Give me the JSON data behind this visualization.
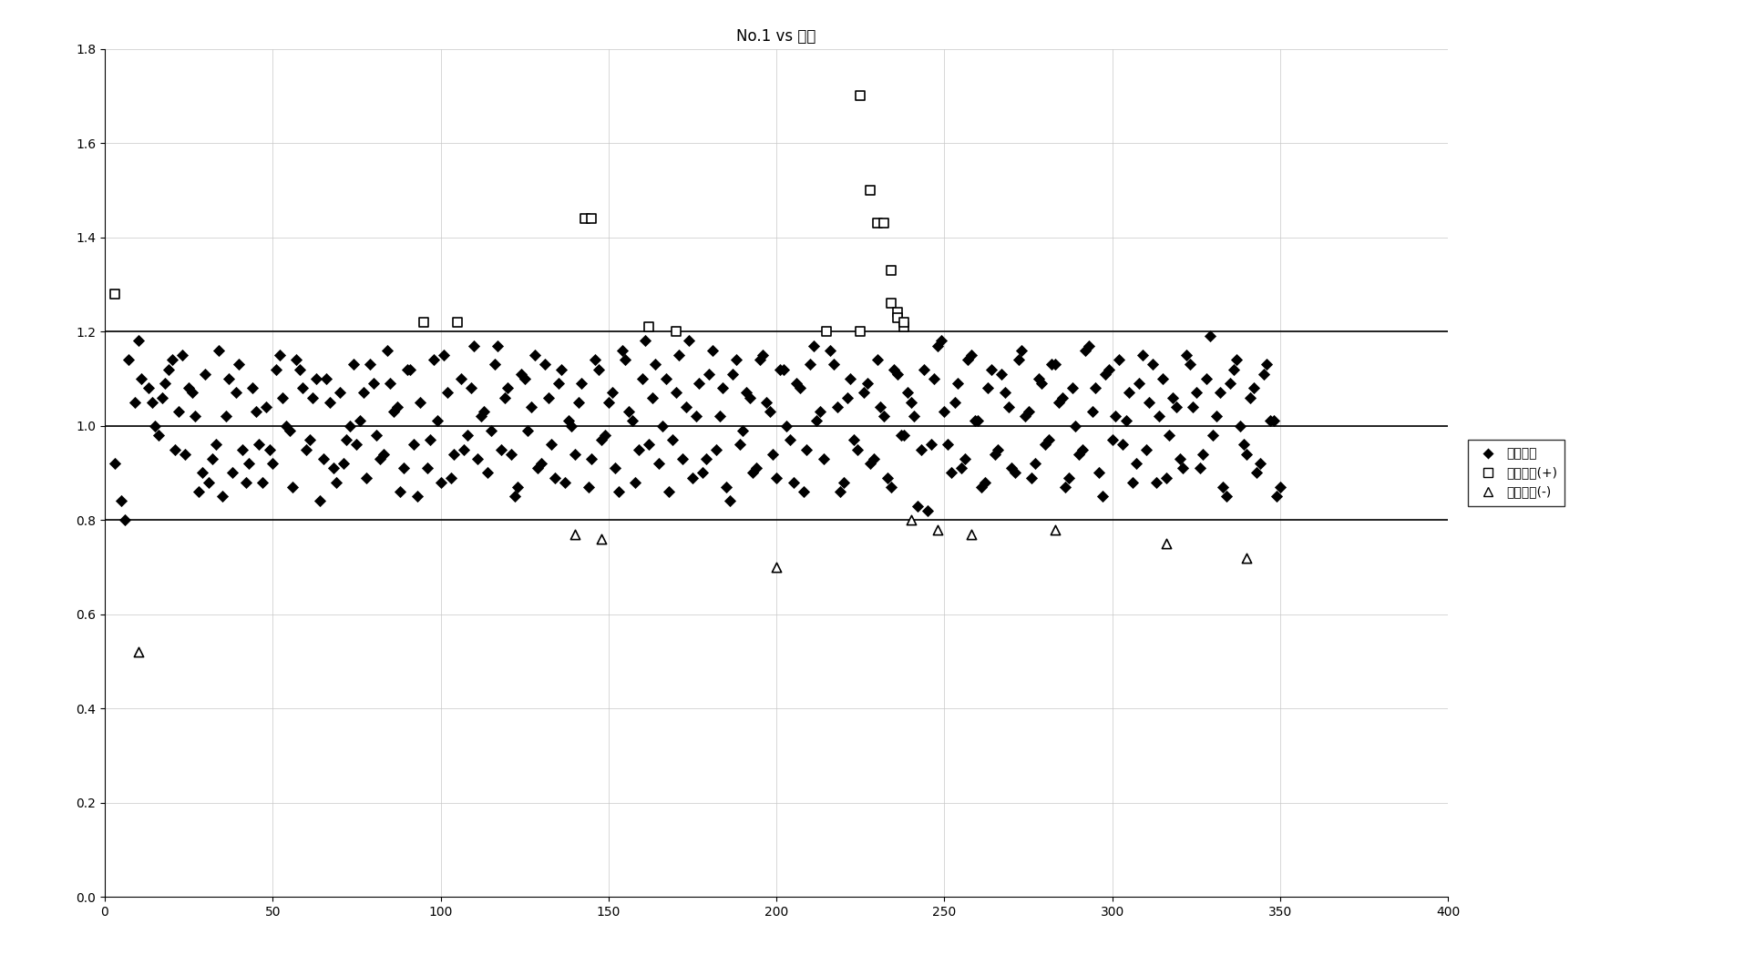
{
  "title": "No.1 vs 男性",
  "xlim": [
    0,
    400
  ],
  "ylim": [
    0,
    1.8
  ],
  "xticks": [
    0,
    50,
    100,
    150,
    200,
    250,
    300,
    350,
    400
  ],
  "yticks": [
    0,
    0.2,
    0.4,
    0.6,
    0.8,
    1.0,
    1.2,
    1.4,
    1.6,
    1.8
  ],
  "hlines": [
    1.2,
    1.0,
    0.8
  ],
  "legend_labels": [
    "在閾値内",
    "在閾値外(+)",
    "在閾値外(-)"
  ],
  "background_color": "#ffffff",
  "diamond_color": "#000000",
  "square_color": "#000000",
  "triangle_color": "#000000",
  "diamond_points": [
    [
      3,
      0.92
    ],
    [
      5,
      0.84
    ],
    [
      7,
      1.14
    ],
    [
      9,
      1.05
    ],
    [
      11,
      1.1
    ],
    [
      13,
      1.08
    ],
    [
      15,
      1.0
    ],
    [
      17,
      1.06
    ],
    [
      19,
      1.12
    ],
    [
      21,
      0.95
    ],
    [
      23,
      1.15
    ],
    [
      25,
      1.08
    ],
    [
      27,
      1.02
    ],
    [
      29,
      0.9
    ],
    [
      31,
      0.88
    ],
    [
      33,
      0.96
    ],
    [
      35,
      0.85
    ],
    [
      37,
      1.1
    ],
    [
      39,
      1.07
    ],
    [
      41,
      0.95
    ],
    [
      43,
      0.92
    ],
    [
      45,
      1.03
    ],
    [
      47,
      0.88
    ],
    [
      49,
      0.95
    ],
    [
      51,
      1.12
    ],
    [
      53,
      1.06
    ],
    [
      55,
      0.99
    ],
    [
      57,
      1.14
    ],
    [
      59,
      1.08
    ],
    [
      61,
      0.97
    ],
    [
      63,
      1.1
    ],
    [
      65,
      0.93
    ],
    [
      67,
      1.05
    ],
    [
      69,
      0.88
    ],
    [
      71,
      0.92
    ],
    [
      73,
      1.0
    ],
    [
      75,
      0.96
    ],
    [
      77,
      1.07
    ],
    [
      79,
      1.13
    ],
    [
      81,
      0.98
    ],
    [
      83,
      0.94
    ],
    [
      85,
      1.09
    ],
    [
      87,
      1.04
    ],
    [
      89,
      0.91
    ],
    [
      91,
      1.12
    ],
    [
      93,
      0.85
    ],
    [
      97,
      0.97
    ],
    [
      99,
      1.01
    ],
    [
      101,
      1.15
    ],
    [
      103,
      0.89
    ],
    [
      107,
      0.95
    ],
    [
      109,
      1.08
    ],
    [
      111,
      0.93
    ],
    [
      113,
      1.03
    ],
    [
      115,
      0.99
    ],
    [
      117,
      1.17
    ],
    [
      119,
      1.06
    ],
    [
      121,
      0.94
    ],
    [
      123,
      0.87
    ],
    [
      125,
      1.1
    ],
    [
      127,
      1.04
    ],
    [
      129,
      0.91
    ],
    [
      131,
      1.13
    ],
    [
      133,
      0.96
    ],
    [
      135,
      1.09
    ],
    [
      137,
      0.88
    ],
    [
      139,
      1.0
    ],
    [
      141,
      1.05
    ],
    [
      145,
      0.93
    ],
    [
      147,
      1.12
    ],
    [
      149,
      0.98
    ],
    [
      151,
      1.07
    ],
    [
      153,
      0.86
    ],
    [
      155,
      1.14
    ],
    [
      157,
      1.01
    ],
    [
      159,
      0.95
    ],
    [
      161,
      1.18
    ],
    [
      163,
      1.06
    ],
    [
      165,
      0.92
    ],
    [
      167,
      1.1
    ],
    [
      169,
      0.97
    ],
    [
      171,
      1.15
    ],
    [
      173,
      1.04
    ],
    [
      175,
      0.89
    ],
    [
      177,
      1.09
    ],
    [
      179,
      0.93
    ],
    [
      181,
      1.16
    ],
    [
      183,
      1.02
    ],
    [
      185,
      0.87
    ],
    [
      187,
      1.11
    ],
    [
      189,
      0.96
    ],
    [
      191,
      1.07
    ],
    [
      193,
      0.9
    ],
    [
      195,
      1.14
    ],
    [
      197,
      1.05
    ],
    [
      199,
      0.94
    ],
    [
      201,
      1.12
    ],
    [
      203,
      1.0
    ],
    [
      205,
      0.88
    ],
    [
      207,
      1.08
    ],
    [
      209,
      0.95
    ],
    [
      211,
      1.17
    ],
    [
      213,
      1.03
    ],
    [
      217,
      1.13
    ],
    [
      219,
      0.86
    ],
    [
      221,
      1.06
    ],
    [
      223,
      0.97
    ],
    [
      227,
      1.09
    ],
    [
      229,
      0.93
    ],
    [
      231,
      1.04
    ],
    [
      233,
      0.89
    ],
    [
      235,
      1.12
    ],
    [
      237,
      0.98
    ],
    [
      239,
      1.07
    ],
    [
      241,
      1.02
    ],
    [
      243,
      0.95
    ],
    [
      245,
      0.82
    ],
    [
      247,
      1.1
    ],
    [
      249,
      1.18
    ],
    [
      251,
      0.96
    ],
    [
      253,
      1.05
    ],
    [
      255,
      0.91
    ],
    [
      257,
      1.14
    ],
    [
      259,
      1.01
    ],
    [
      261,
      0.87
    ],
    [
      263,
      1.08
    ],
    [
      265,
      0.94
    ],
    [
      267,
      1.11
    ],
    [
      269,
      1.04
    ],
    [
      271,
      0.9
    ],
    [
      273,
      1.16
    ],
    [
      275,
      1.03
    ],
    [
      277,
      0.92
    ],
    [
      279,
      1.09
    ],
    [
      281,
      0.97
    ],
    [
      283,
      1.13
    ],
    [
      285,
      1.06
    ],
    [
      287,
      0.89
    ],
    [
      289,
      1.0
    ],
    [
      291,
      0.95
    ],
    [
      293,
      1.17
    ],
    [
      295,
      1.08
    ],
    [
      297,
      0.85
    ],
    [
      299,
      1.12
    ],
    [
      301,
      1.02
    ],
    [
      303,
      0.96
    ],
    [
      305,
      1.07
    ],
    [
      307,
      0.92
    ],
    [
      309,
      1.15
    ],
    [
      311,
      1.05
    ],
    [
      313,
      0.88
    ],
    [
      315,
      1.1
    ],
    [
      317,
      0.98
    ],
    [
      319,
      1.04
    ],
    [
      321,
      0.91
    ],
    [
      323,
      1.13
    ],
    [
      325,
      1.07
    ],
    [
      327,
      0.94
    ],
    [
      329,
      1.19
    ],
    [
      331,
      1.02
    ],
    [
      333,
      0.87
    ],
    [
      335,
      1.09
    ],
    [
      337,
      1.14
    ],
    [
      339,
      0.96
    ],
    [
      341,
      1.06
    ],
    [
      343,
      0.9
    ],
    [
      345,
      1.11
    ],
    [
      347,
      1.01
    ],
    [
      349,
      0.85
    ],
    [
      6,
      0.8
    ],
    [
      10,
      1.18
    ],
    [
      14,
      1.05
    ],
    [
      16,
      0.98
    ],
    [
      18,
      1.09
    ],
    [
      20,
      1.14
    ],
    [
      22,
      1.03
    ],
    [
      24,
      0.94
    ],
    [
      26,
      1.07
    ],
    [
      28,
      0.86
    ],
    [
      30,
      1.11
    ],
    [
      32,
      0.93
    ],
    [
      34,
      1.16
    ],
    [
      36,
      1.02
    ],
    [
      38,
      0.9
    ],
    [
      40,
      1.13
    ],
    [
      42,
      0.88
    ],
    [
      44,
      1.08
    ],
    [
      46,
      0.96
    ],
    [
      48,
      1.04
    ],
    [
      50,
      0.92
    ],
    [
      52,
      1.15
    ],
    [
      54,
      1.0
    ],
    [
      56,
      0.87
    ],
    [
      58,
      1.12
    ],
    [
      60,
      0.95
    ],
    [
      62,
      1.06
    ],
    [
      64,
      0.84
    ],
    [
      66,
      1.1
    ],
    [
      68,
      0.91
    ],
    [
      70,
      1.07
    ],
    [
      72,
      0.97
    ],
    [
      74,
      1.13
    ],
    [
      76,
      1.01
    ],
    [
      78,
      0.89
    ],
    [
      80,
      1.09
    ],
    [
      82,
      0.93
    ],
    [
      84,
      1.16
    ],
    [
      86,
      1.03
    ],
    [
      88,
      0.86
    ],
    [
      90,
      1.12
    ],
    [
      92,
      0.96
    ],
    [
      94,
      1.05
    ],
    [
      96,
      0.91
    ],
    [
      98,
      1.14
    ],
    [
      100,
      0.88
    ],
    [
      102,
      1.07
    ],
    [
      104,
      0.94
    ],
    [
      106,
      1.1
    ],
    [
      108,
      0.98
    ],
    [
      110,
      1.17
    ],
    [
      112,
      1.02
    ],
    [
      114,
      0.9
    ],
    [
      116,
      1.13
    ],
    [
      118,
      0.95
    ],
    [
      120,
      1.08
    ],
    [
      122,
      0.85
    ],
    [
      124,
      1.11
    ],
    [
      126,
      0.99
    ],
    [
      128,
      1.15
    ],
    [
      130,
      0.92
    ],
    [
      132,
      1.06
    ],
    [
      134,
      0.89
    ],
    [
      136,
      1.12
    ],
    [
      138,
      1.01
    ],
    [
      140,
      0.94
    ],
    [
      142,
      1.09
    ],
    [
      144,
      0.87
    ],
    [
      146,
      1.14
    ],
    [
      148,
      0.97
    ],
    [
      150,
      1.05
    ],
    [
      152,
      0.91
    ],
    [
      154,
      1.16
    ],
    [
      156,
      1.03
    ],
    [
      158,
      0.88
    ],
    [
      160,
      1.1
    ],
    [
      162,
      0.96
    ],
    [
      164,
      1.13
    ],
    [
      166,
      1.0
    ],
    [
      168,
      0.86
    ],
    [
      170,
      1.07
    ],
    [
      172,
      0.93
    ],
    [
      174,
      1.18
    ],
    [
      176,
      1.02
    ],
    [
      178,
      0.9
    ],
    [
      180,
      1.11
    ],
    [
      182,
      0.95
    ],
    [
      184,
      1.08
    ],
    [
      186,
      0.84
    ],
    [
      188,
      1.14
    ],
    [
      190,
      0.99
    ],
    [
      192,
      1.06
    ],
    [
      194,
      0.91
    ],
    [
      196,
      1.15
    ],
    [
      198,
      1.03
    ],
    [
      200,
      0.89
    ],
    [
      202,
      1.12
    ],
    [
      204,
      0.97
    ],
    [
      206,
      1.09
    ],
    [
      208,
      0.86
    ],
    [
      210,
      1.13
    ],
    [
      212,
      1.01
    ],
    [
      214,
      0.93
    ],
    [
      216,
      1.16
    ],
    [
      218,
      1.04
    ],
    [
      220,
      0.88
    ],
    [
      222,
      1.1
    ],
    [
      224,
      0.95
    ],
    [
      226,
      1.07
    ],
    [
      228,
      0.92
    ],
    [
      230,
      1.14
    ],
    [
      232,
      1.02
    ],
    [
      234,
      0.87
    ],
    [
      236,
      1.11
    ],
    [
      238,
      0.98
    ],
    [
      240,
      1.05
    ],
    [
      242,
      0.83
    ],
    [
      244,
      1.12
    ],
    [
      246,
      0.96
    ],
    [
      248,
      1.17
    ],
    [
      250,
      1.03
    ],
    [
      252,
      0.9
    ],
    [
      254,
      1.09
    ],
    [
      256,
      0.93
    ],
    [
      258,
      1.15
    ],
    [
      260,
      1.01
    ],
    [
      262,
      0.88
    ],
    [
      264,
      1.12
    ],
    [
      266,
      0.95
    ],
    [
      268,
      1.07
    ],
    [
      270,
      0.91
    ],
    [
      272,
      1.14
    ],
    [
      274,
      1.02
    ],
    [
      276,
      0.89
    ],
    [
      278,
      1.1
    ],
    [
      280,
      0.96
    ],
    [
      282,
      1.13
    ],
    [
      284,
      1.05
    ],
    [
      286,
      0.87
    ],
    [
      288,
      1.08
    ],
    [
      290,
      0.94
    ],
    [
      292,
      1.16
    ],
    [
      294,
      1.03
    ],
    [
      296,
      0.9
    ],
    [
      298,
      1.11
    ],
    [
      300,
      0.97
    ],
    [
      302,
      1.14
    ],
    [
      304,
      1.01
    ],
    [
      306,
      0.88
    ],
    [
      308,
      1.09
    ],
    [
      310,
      0.95
    ],
    [
      312,
      1.13
    ],
    [
      314,
      1.02
    ],
    [
      316,
      0.89
    ],
    [
      318,
      1.06
    ],
    [
      320,
      0.93
    ],
    [
      322,
      1.15
    ],
    [
      324,
      1.04
    ],
    [
      326,
      0.91
    ],
    [
      328,
      1.1
    ],
    [
      330,
      0.98
    ],
    [
      332,
      1.07
    ],
    [
      334,
      0.85
    ],
    [
      336,
      1.12
    ],
    [
      338,
      1.0
    ],
    [
      340,
      0.94
    ],
    [
      342,
      1.08
    ],
    [
      344,
      0.92
    ],
    [
      346,
      1.13
    ],
    [
      348,
      1.01
    ],
    [
      350,
      0.87
    ]
  ],
  "square_points": [
    [
      3,
      1.28
    ],
    [
      95,
      1.22
    ],
    [
      105,
      1.22
    ],
    [
      143,
      1.44
    ],
    [
      145,
      1.44
    ],
    [
      162,
      1.21
    ],
    [
      170,
      1.2
    ],
    [
      215,
      1.2
    ],
    [
      225,
      1.2
    ],
    [
      225,
      1.7
    ],
    [
      228,
      1.5
    ],
    [
      230,
      1.43
    ],
    [
      232,
      1.43
    ],
    [
      234,
      1.33
    ],
    [
      234,
      1.26
    ],
    [
      236,
      1.24
    ],
    [
      236,
      1.23
    ],
    [
      238,
      1.21
    ],
    [
      238,
      1.22
    ]
  ],
  "triangle_points": [
    [
      10,
      0.52
    ],
    [
      140,
      0.77
    ],
    [
      148,
      0.76
    ],
    [
      200,
      0.7
    ],
    [
      240,
      0.8
    ],
    [
      248,
      0.78
    ],
    [
      258,
      0.77
    ],
    [
      283,
      0.78
    ],
    [
      316,
      0.75
    ],
    [
      340,
      0.72
    ]
  ],
  "grid_color": "#c8c8c8",
  "grid_linestyle": "-",
  "grid_linewidth": 0.5
}
